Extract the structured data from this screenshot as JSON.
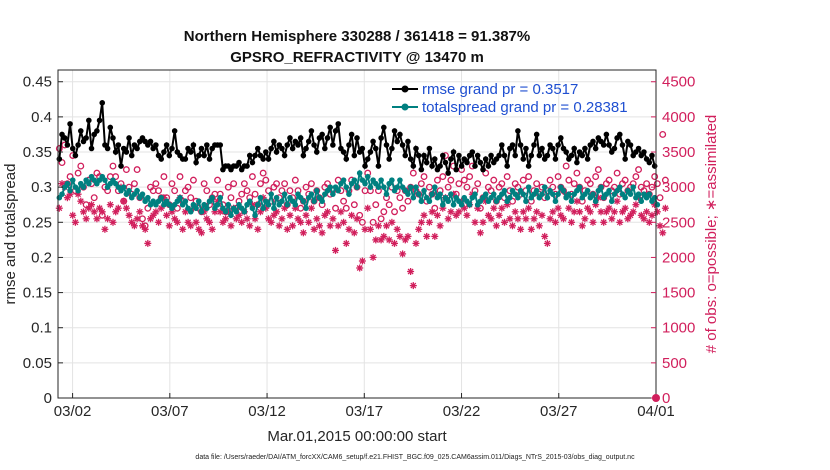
{
  "chart_data": {
    "type": "line",
    "title_line1": "Northern Hemisphere 330288 / 361418 = 91.387%",
    "title_line2": "GPSRO_REFRACTIVITY @ 13470 m",
    "xlabel": "Mar.01,2015 00:00:00 start",
    "ylabel_left": "rmse and totalspread",
    "ylabel_right": "# of obs: o=possible; ∗=assimilated",
    "x_ticks": [
      "03/02",
      "03/07",
      "03/12",
      "03/17",
      "03/22",
      "03/27",
      "04/01"
    ],
    "x_tick_days": [
      1,
      6,
      11,
      16,
      21,
      26,
      31
    ],
    "xlim": [
      0.25,
      31
    ],
    "y_left_ticks": [
      "0",
      "0.05",
      "0.1",
      "0.15",
      "0.2",
      "0.25",
      "0.3",
      "0.35",
      "0.4",
      "0.45"
    ],
    "ylim_left": [
      0,
      0.4667
    ],
    "y_right_ticks": [
      "0",
      "500",
      "1000",
      "1500",
      "2000",
      "2500",
      "3000",
      "3500",
      "4000",
      "4500"
    ],
    "ylim_right": [
      0,
      4667
    ],
    "colors": {
      "rmse": "#000000",
      "spread": "#008080",
      "obs": "#d11f5c",
      "legend_text": "#1f4fd1"
    },
    "series": [
      {
        "name": "rmse grand pr = 0.3517",
        "values": [
          0.34,
          0.375,
          0.37,
          0.36,
          0.39,
          0.355,
          0.345,
          0.36,
          0.38,
          0.365,
          0.37,
          0.395,
          0.355,
          0.375,
          0.38,
          0.395,
          0.42,
          0.36,
          0.355,
          0.385,
          0.37,
          0.35,
          0.36,
          0.33,
          0.355,
          0.35,
          0.37,
          0.345,
          0.36,
          0.355,
          0.365,
          0.37,
          0.365,
          0.36,
          0.365,
          0.355,
          0.36,
          0.345,
          0.34,
          0.35,
          0.36,
          0.345,
          0.355,
          0.38,
          0.35,
          0.345,
          0.34,
          0.34,
          0.355,
          0.35,
          0.36,
          0.335,
          0.345,
          0.355,
          0.345,
          0.36,
          0.34,
          0.355,
          0.36,
          0.36,
          0.36,
          0.325,
          0.33,
          0.33,
          0.325,
          0.33,
          0.33,
          0.335,
          0.325,
          0.33,
          0.33,
          0.345,
          0.335,
          0.345,
          0.355,
          0.345,
          0.34,
          0.35,
          0.34,
          0.355,
          0.365,
          0.35,
          0.36,
          0.355,
          0.345,
          0.36,
          0.37,
          0.355,
          0.365,
          0.36,
          0.37,
          0.345,
          0.355,
          0.365,
          0.38,
          0.36,
          0.35,
          0.37,
          0.375,
          0.355,
          0.37,
          0.385,
          0.36,
          0.38,
          0.39,
          0.355,
          0.35,
          0.34,
          0.36,
          0.375,
          0.345,
          0.37,
          0.35,
          0.355,
          0.33,
          0.34,
          0.35,
          0.365,
          0.355,
          0.33,
          0.37,
          0.385,
          0.36,
          0.34,
          0.355,
          0.38,
          0.365,
          0.375,
          0.36,
          0.345,
          0.365,
          0.34,
          0.33,
          0.355,
          0.345,
          0.325,
          0.345,
          0.335,
          0.355,
          0.33,
          0.34,
          0.325,
          0.33,
          0.345,
          0.335,
          0.32,
          0.34,
          0.35,
          0.325,
          0.345,
          0.33,
          0.34,
          0.335,
          0.345,
          0.35,
          0.33,
          0.345,
          0.335,
          0.325,
          0.34,
          0.33,
          0.345,
          0.335,
          0.34,
          0.345,
          0.36,
          0.345,
          0.33,
          0.355,
          0.36,
          0.345,
          0.38,
          0.36,
          0.34,
          0.355,
          0.33,
          0.345,
          0.36,
          0.375,
          0.345,
          0.355,
          0.34,
          0.345,
          0.36,
          0.355,
          0.34,
          0.36,
          0.37,
          0.355,
          0.35,
          0.34,
          0.345,
          0.355,
          0.335,
          0.35,
          0.345,
          0.355,
          0.34,
          0.36,
          0.365,
          0.355,
          0.37,
          0.365,
          0.36,
          0.375,
          0.36,
          0.35,
          0.355,
          0.37,
          0.375,
          0.36,
          0.34,
          0.365,
          0.36,
          0.345,
          0.35,
          0.355,
          0.345,
          0.35,
          0.34,
          0.335,
          0.345,
          0.33
        ]
      },
      {
        "name": "totalspread grand pr = 0.28381",
        "values": [
          0.285,
          0.29,
          0.3,
          0.305,
          0.295,
          0.31,
          0.3,
          0.295,
          0.305,
          0.3,
          0.31,
          0.305,
          0.315,
          0.31,
          0.305,
          0.31,
          0.315,
          0.31,
          0.3,
          0.305,
          0.31,
          0.305,
          0.3,
          0.295,
          0.3,
          0.29,
          0.295,
          0.285,
          0.29,
          0.295,
          0.285,
          0.29,
          0.28,
          0.285,
          0.275,
          0.28,
          0.275,
          0.28,
          0.285,
          0.275,
          0.28,
          0.275,
          0.27,
          0.275,
          0.28,
          0.285,
          0.275,
          0.28,
          0.27,
          0.265,
          0.275,
          0.27,
          0.28,
          0.265,
          0.275,
          0.27,
          0.28,
          0.285,
          0.27,
          0.275,
          0.285,
          0.27,
          0.265,
          0.275,
          0.26,
          0.27,
          0.265,
          0.275,
          0.27,
          0.265,
          0.275,
          0.28,
          0.27,
          0.26,
          0.275,
          0.285,
          0.27,
          0.28,
          0.275,
          0.29,
          0.27,
          0.285,
          0.275,
          0.28,
          0.29,
          0.275,
          0.285,
          0.28,
          0.275,
          0.29,
          0.285,
          0.28,
          0.27,
          0.285,
          0.29,
          0.28,
          0.295,
          0.285,
          0.28,
          0.29,
          0.295,
          0.3,
          0.29,
          0.3,
          0.295,
          0.305,
          0.31,
          0.3,
          0.29,
          0.305,
          0.31,
          0.3,
          0.32,
          0.31,
          0.305,
          0.315,
          0.3,
          0.31,
          0.305,
          0.3,
          0.31,
          0.3,
          0.29,
          0.305,
          0.31,
          0.295,
          0.3,
          0.31,
          0.3,
          0.295,
          0.29,
          0.3,
          0.285,
          0.3,
          0.29,
          0.28,
          0.295,
          0.285,
          0.28,
          0.29,
          0.3,
          0.285,
          0.29,
          0.275,
          0.285,
          0.28,
          0.29,
          0.275,
          0.285,
          0.28,
          0.275,
          0.285,
          0.28,
          0.275,
          0.285,
          0.29,
          0.275,
          0.28,
          0.285,
          0.29,
          0.28,
          0.285,
          0.29,
          0.28,
          0.285,
          0.29,
          0.295,
          0.28,
          0.285,
          0.295,
          0.29,
          0.285,
          0.295,
          0.29,
          0.28,
          0.3,
          0.285,
          0.29,
          0.295,
          0.285,
          0.29,
          0.3,
          0.285,
          0.295,
          0.29,
          0.28,
          0.29,
          0.3,
          0.295,
          0.285,
          0.29,
          0.28,
          0.29,
          0.295,
          0.3,
          0.285,
          0.29,
          0.295,
          0.285,
          0.29,
          0.28,
          0.295,
          0.3,
          0.285,
          0.29,
          0.295,
          0.28,
          0.29,
          0.295,
          0.3,
          0.29,
          0.285,
          0.295,
          0.29,
          0.3,
          0.285,
          0.29,
          0.28,
          0.29,
          0.285,
          0.29,
          0.28,
          0.285,
          0.275
        ]
      },
      {
        "name": "obs possible",
        "values": [
          3550,
          3350,
          3600,
          3050,
          3150,
          3450,
          2950,
          3200,
          3300,
          3000,
          2750,
          3100,
          3050,
          2850,
          3200,
          3150,
          2600,
          3000,
          2950,
          3150,
          3300,
          3150,
          2950,
          3050,
          2800,
          3250,
          3000,
          2900,
          3050,
          3250,
          2850,
          2550,
          2450,
          2700,
          3000,
          2950,
          3050,
          2950,
          2850,
          3150,
          2850,
          2750,
          3050,
          2950,
          2700,
          3150,
          2800,
          2950,
          3000,
          2850,
          3100,
          2800,
          2700,
          2650,
          3050,
          2950,
          2750,
          2850,
          2900,
          3100,
          2900,
          2750,
          2650,
          3000,
          2850,
          3050,
          2700,
          2800,
          2900,
          3050,
          2950,
          2850,
          3150,
          2900,
          2750,
          3050,
          3200,
          3100,
          2950,
          2800,
          3000,
          3050,
          2850,
          2950,
          3050,
          2750,
          2950,
          2850,
          3100,
          2950,
          2700,
          2800,
          3000,
          2900,
          3050,
          2800,
          2950,
          2850,
          2750,
          3000,
          3050,
          2900,
          2950,
          2700,
          3100,
          2950,
          2800,
          2700,
          2950,
          3100,
          2750,
          3000,
          2600,
          2500,
          2950,
          3200,
          2950,
          2500,
          2750,
          2950,
          2550,
          2650,
          2850,
          2750,
          3000,
          2650,
          2950,
          2850,
          2700,
          2950,
          2800,
          3000,
          3200,
          2950,
          2900,
          3050,
          3150,
          2800,
          3000,
          2900,
          2700,
          3100,
          2950,
          3150,
          3450,
          3000,
          3100,
          3300,
          2900,
          3050,
          3250,
          3100,
          3000,
          3150,
          3300,
          2950,
          3050,
          2700,
          2850,
          3200,
          3000,
          2950,
          3100,
          2800,
          3000,
          3050,
          2850,
          3150,
          2950,
          2800,
          3050,
          3000,
          2900,
          3100,
          2950,
          3150,
          2800,
          2950,
          3050,
          2900,
          3000,
          2850,
          2950,
          3100,
          3000,
          2900,
          3150,
          3000,
          2950,
          3300,
          3100,
          2900,
          3050,
          3200,
          3000,
          2800,
          2950,
          3100,
          3050,
          2900,
          3150,
          3250,
          3000,
          2850,
          3050,
          3100,
          2950,
          3000,
          3200,
          2900,
          3050,
          3100,
          2950,
          3000,
          3050,
          3150,
          3250,
          3000,
          2950,
          3050,
          2900,
          3000,
          3150,
          3050,
          2850,
          3750,
          3100
        ]
      },
      {
        "name": "obs assimilated",
        "values": [
          2700,
          3050,
          3000,
          2850,
          2900,
          2600,
          2500,
          2900,
          2800,
          2650,
          2550,
          2700,
          2750,
          2650,
          2550,
          2700,
          2650,
          2400,
          2550,
          2750,
          2500,
          2650,
          2700,
          3000,
          2800,
          2700,
          2600,
          2500,
          2450,
          2550,
          2650,
          2450,
          2400,
          2200,
          2550,
          2600,
          2650,
          2500,
          2700,
          2850,
          2600,
          2450,
          2650,
          2550,
          2500,
          2850,
          2400,
          2650,
          2500,
          2450,
          2700,
          2500,
          2400,
          2350,
          2650,
          2550,
          2500,
          2400,
          2650,
          2800,
          2650,
          2500,
          2550,
          2650,
          2450,
          2700,
          2550,
          2600,
          2500,
          2650,
          2550,
          2450,
          2750,
          2550,
          2400,
          2650,
          2850,
          2700,
          2550,
          2500,
          2600,
          2650,
          2450,
          2550,
          2700,
          2400,
          2600,
          2450,
          2700,
          2550,
          2500,
          2350,
          2600,
          2500,
          2700,
          2400,
          2550,
          2450,
          2350,
          2600,
          2650,
          2450,
          2550,
          2100,
          2450,
          2650,
          2500,
          2200,
          2400,
          2600,
          2350,
          2550,
          1850,
          1950,
          2400,
          2700,
          2400,
          2000,
          2250,
          2450,
          2250,
          2300,
          2450,
          2250,
          2500,
          2200,
          2400,
          2300,
          2050,
          2250,
          2300,
          1800,
          1600,
          2200,
          2400,
          2500,
          2600,
          2300,
          2500,
          2650,
          2300,
          2600,
          2450,
          2700,
          2850,
          2550,
          2650,
          2900,
          2600,
          2650,
          2800,
          2700,
          2600,
          2750,
          2900,
          2500,
          2700,
          2350,
          2500,
          2800,
          2600,
          2550,
          2700,
          2450,
          2600,
          2700,
          2500,
          2750,
          2550,
          2450,
          2650,
          2550,
          2400,
          2650,
          2550,
          2700,
          2400,
          2550,
          2650,
          2450,
          2600,
          2300,
          2200,
          2550,
          2650,
          2500,
          2700,
          2600,
          2550,
          2900,
          2700,
          2500,
          2650,
          2800,
          2650,
          2450,
          2550,
          2700,
          2650,
          2500,
          2750,
          2850,
          2650,
          2500,
          2650,
          2700,
          2550,
          2650,
          2800,
          2500,
          2650,
          2700,
          2550,
          2600,
          2650,
          2750,
          2850,
          2600,
          2550,
          2650,
          2500,
          2600,
          2750,
          2650,
          2450,
          2350,
          2700
        ]
      }
    ],
    "footer": "data file: /Users/raeder/DAI/ATM_forcXX/CAM6_setup/f.e21.FHIST_BGC.f09_025.CAM6assim.011/Diags_NTrS_2015-03/obs_diag_output.nc"
  }
}
